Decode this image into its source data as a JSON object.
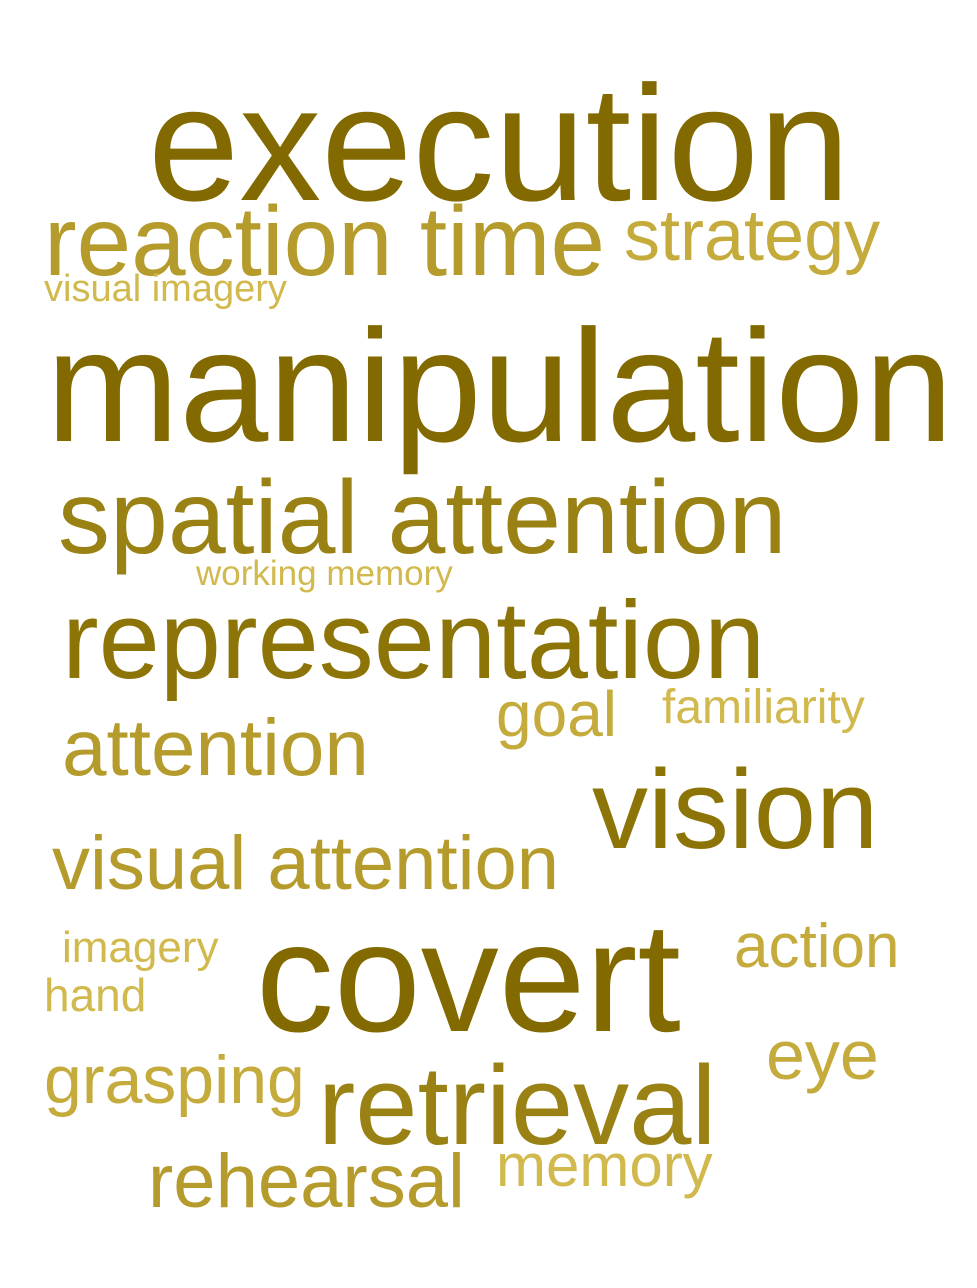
{
  "words": {
    "execution": "execution",
    "reaction_time": "reaction time",
    "strategy": "strategy",
    "visual_imagery": "visual imagery",
    "manipulation": "manipulation",
    "spatial_attention": "spatial attention",
    "working_memory": "working memory",
    "representation": "representation",
    "goal": "goal",
    "familiarity": "familiarity",
    "attention": "attention",
    "vision": "vision",
    "visual_attention": "visual attention",
    "imagery": "imagery",
    "action": "action",
    "covert": "covert",
    "hand": "hand",
    "eye": "eye",
    "grasping": "grasping",
    "retrieval": "retrieval",
    "rehearsal": "rehearsal",
    "memory": "memory"
  },
  "colors": {
    "darkest": "#826a00",
    "dark": "#8d7407",
    "medium_dark": "#9a8114",
    "medium": "#a88e1e",
    "medium_light": "#b49b2b",
    "light": "#c4ab3c",
    "lightest": "#d1b94d"
  }
}
